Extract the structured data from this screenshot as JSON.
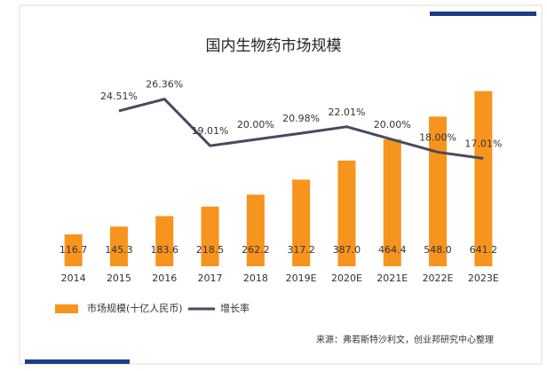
{
  "chart_data": {
    "type": "bar_line",
    "title": "国内生物药市场规模",
    "categories": [
      "2014",
      "2015",
      "2016",
      "2017",
      "2018",
      "2019E",
      "2020E",
      "2021E",
      "2022E",
      "2023E"
    ],
    "series": [
      {
        "name": "市场规模(十亿人民币)",
        "color": "#f7941d",
        "type": "bar",
        "values": [
          116.7,
          145.3,
          183.6,
          218.5,
          262.2,
          317.2,
          387.0,
          464.4,
          548.0,
          641.2
        ],
        "value_labels": [
          "116.7",
          "145.3",
          "183.6",
          "218.5",
          "262.2",
          "317.2",
          "387.0",
          "464.4",
          "548.0",
          "641.2"
        ]
      },
      {
        "name": "增长率",
        "color": "#4a4a5e",
        "type": "line",
        "axis": "y2",
        "values": [
          null,
          24.51,
          26.36,
          19.01,
          20.0,
          20.98,
          22.01,
          20.0,
          18.0,
          17.01
        ],
        "value_labels": [
          null,
          "24.51%",
          "26.36%",
          "19.01%",
          "20.00%",
          "20.98%",
          "22.01%",
          "20.00%",
          "18.00%",
          "17.01%"
        ]
      }
    ],
    "ylim": [
      0,
      650
    ],
    "y2lim": [
      0,
      28
    ],
    "source": "来源：弗若斯特沙利文，创业邦研究中心整理"
  }
}
